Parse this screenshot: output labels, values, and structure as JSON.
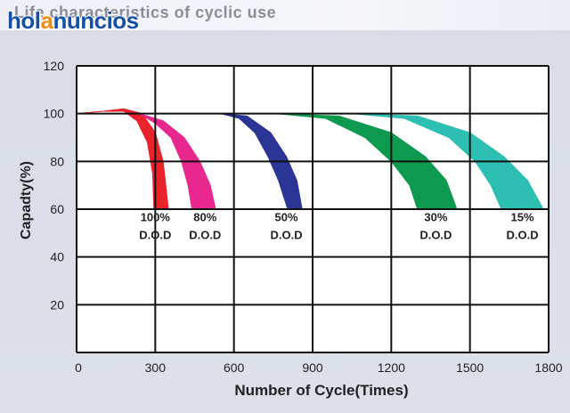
{
  "header": {
    "title": "Life characteristics of cyclic use",
    "watermark": {
      "brand_parts": [
        "hol",
        "a",
        "nuncios"
      ],
      "brand_color": "#1550a8",
      "accent_color": "#f08a12"
    }
  },
  "chart_data": {
    "type": "area",
    "title": "",
    "xlabel": "Number of Cycle(Times)",
    "ylabel": "Capadty(%)",
    "xlim": [
      0,
      1800
    ],
    "ylim": [
      0,
      120
    ],
    "xticks": [
      0,
      300,
      600,
      900,
      1200,
      1500,
      1800
    ],
    "yticks": [
      20,
      40,
      60,
      80,
      100,
      120
    ],
    "grid": true,
    "series": [
      {
        "name": "100% D.O.D",
        "label_lines": [
          "100%",
          "D.O.D"
        ],
        "label_at": [
          300,
          55
        ],
        "color": "#e8232a",
        "upper": [
          [
            0,
            100
          ],
          [
            100,
            101
          ],
          [
            180,
            102
          ],
          [
            250,
            100
          ],
          [
            300,
            92
          ],
          [
            330,
            80
          ],
          [
            350,
            60
          ]
        ],
        "lower": [
          [
            0,
            100
          ],
          [
            100,
            101
          ],
          [
            180,
            101
          ],
          [
            230,
            97
          ],
          [
            270,
            88
          ],
          [
            290,
            75
          ],
          [
            295,
            60
          ]
        ]
      },
      {
        "name": "80% D.O.D",
        "label_lines": [
          "80%",
          "D.O.D"
        ],
        "label_at": [
          490,
          55
        ],
        "color": "#e8288f",
        "upper": [
          [
            240,
            100
          ],
          [
            330,
            97
          ],
          [
            410,
            90
          ],
          [
            470,
            80
          ],
          [
            510,
            70
          ],
          [
            530,
            60
          ]
        ],
        "lower": [
          [
            240,
            100
          ],
          [
            300,
            96
          ],
          [
            360,
            90
          ],
          [
            400,
            80
          ],
          [
            425,
            70
          ],
          [
            440,
            60
          ]
        ]
      },
      {
        "name": "50% D.O.D",
        "label_lines": [
          "50%",
          "D.O.D"
        ],
        "label_at": [
          800,
          55
        ],
        "color": "#2a3595",
        "upper": [
          [
            550,
            100
          ],
          [
            650,
            99
          ],
          [
            740,
            92
          ],
          [
            800,
            82
          ],
          [
            840,
            72
          ],
          [
            860,
            60
          ]
        ],
        "lower": [
          [
            550,
            100
          ],
          [
            620,
            98
          ],
          [
            680,
            92
          ],
          [
            730,
            82
          ],
          [
            770,
            72
          ],
          [
            805,
            60
          ]
        ]
      },
      {
        "name": "30% D.O.D",
        "label_lines": [
          "30%",
          "D.O.D"
        ],
        "label_at": [
          1370,
          55
        ],
        "color": "#0e9a4e",
        "upper": [
          [
            760,
            100
          ],
          [
            1000,
            99
          ],
          [
            1200,
            92
          ],
          [
            1330,
            82
          ],
          [
            1410,
            72
          ],
          [
            1450,
            60
          ]
        ],
        "lower": [
          [
            760,
            100
          ],
          [
            950,
            98
          ],
          [
            1100,
            90
          ],
          [
            1200,
            80
          ],
          [
            1270,
            70
          ],
          [
            1300,
            60
          ]
        ]
      },
      {
        "name": "15% D.O.D",
        "label_lines": [
          "15%",
          "D.O.D"
        ],
        "label_at": [
          1700,
          55
        ],
        "color": "#2dbfb2",
        "upper": [
          [
            1050,
            100
          ],
          [
            1300,
            99
          ],
          [
            1500,
            92
          ],
          [
            1630,
            82
          ],
          [
            1720,
            72
          ],
          [
            1780,
            60
          ]
        ],
        "lower": [
          [
            1050,
            100
          ],
          [
            1250,
            98
          ],
          [
            1420,
            90
          ],
          [
            1520,
            80
          ],
          [
            1580,
            70
          ],
          [
            1620,
            60
          ]
        ]
      }
    ]
  }
}
